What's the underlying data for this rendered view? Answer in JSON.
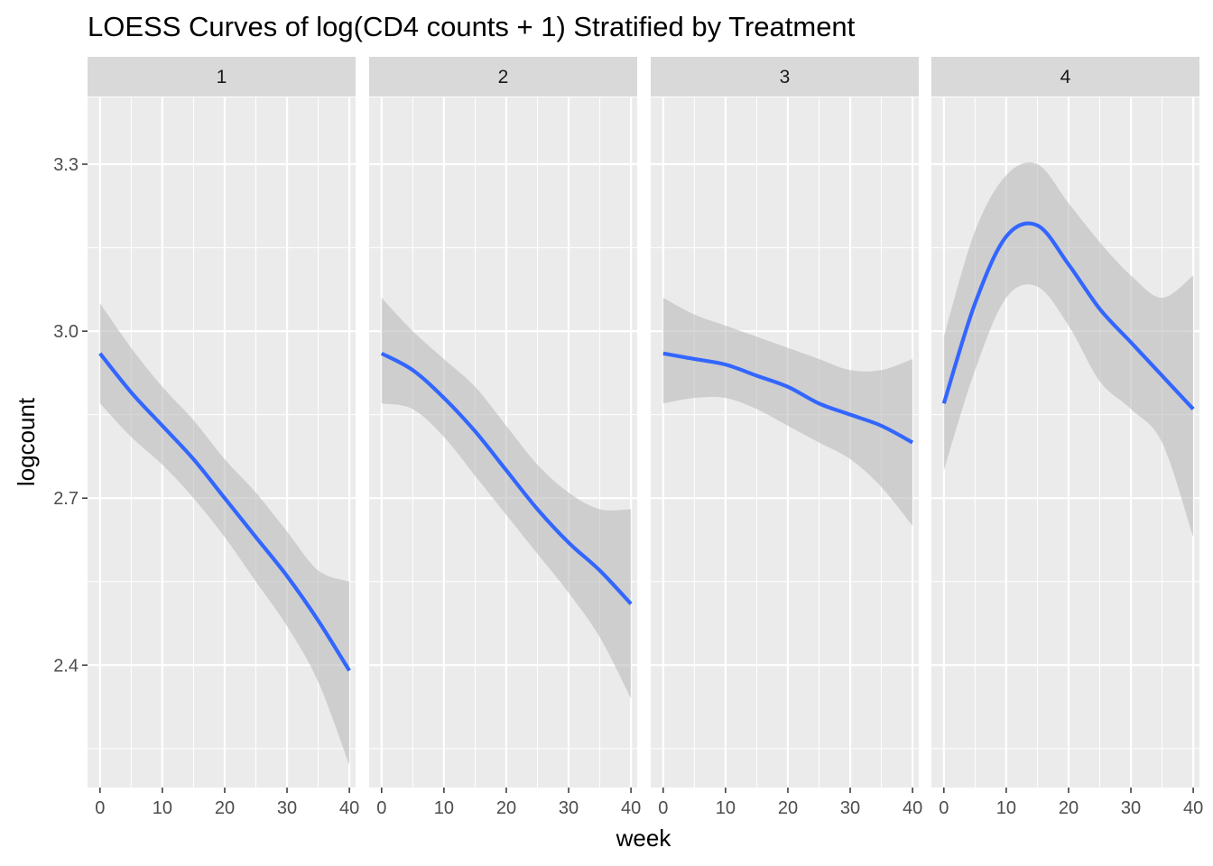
{
  "chart_data": {
    "type": "line",
    "title": "LOESS Curves of log(CD4 counts + 1) Stratified by Treatment",
    "xlabel": "week",
    "ylabel": "logcount",
    "xlim": [
      -2,
      41
    ],
    "ylim": [
      2.18,
      3.42
    ],
    "x_ticks": [
      0,
      10,
      20,
      30,
      40
    ],
    "x_tick_labels": [
      "0",
      "10",
      "20",
      "30",
      "40"
    ],
    "y_ticks": [
      2.4,
      2.7,
      3.0,
      3.3
    ],
    "y_tick_labels": [
      "2.4",
      "2.7",
      "3.0",
      "3.3"
    ],
    "grid": true,
    "legend": "none",
    "colors": {
      "line": "#3366ff",
      "ribbon": "#bdbdbd",
      "panel_background": "#ebebeb",
      "strip_background": "#d9d9d9",
      "grid": "#ffffff"
    },
    "panels": [
      {
        "strip": "1",
        "x": [
          0,
          5,
          10,
          15,
          20,
          25,
          30,
          35,
          40
        ],
        "fit": [
          2.96,
          2.89,
          2.83,
          2.77,
          2.7,
          2.63,
          2.56,
          2.48,
          2.39
        ],
        "lower": [
          2.87,
          2.81,
          2.76,
          2.7,
          2.63,
          2.55,
          2.47,
          2.37,
          2.22
        ],
        "upper": [
          3.05,
          2.97,
          2.9,
          2.84,
          2.77,
          2.71,
          2.64,
          2.57,
          2.55
        ]
      },
      {
        "strip": "2",
        "x": [
          0,
          5,
          10,
          15,
          20,
          25,
          30,
          35,
          40
        ],
        "fit": [
          2.96,
          2.93,
          2.88,
          2.82,
          2.75,
          2.68,
          2.62,
          2.57,
          2.51
        ],
        "lower": [
          2.87,
          2.86,
          2.81,
          2.74,
          2.67,
          2.6,
          2.53,
          2.45,
          2.34
        ],
        "upper": [
          3.06,
          3.0,
          2.95,
          2.9,
          2.83,
          2.76,
          2.71,
          2.68,
          2.68
        ]
      },
      {
        "strip": "3",
        "x": [
          0,
          5,
          10,
          15,
          20,
          25,
          30,
          35,
          40
        ],
        "fit": [
          2.96,
          2.95,
          2.94,
          2.92,
          2.9,
          2.87,
          2.85,
          2.83,
          2.8
        ],
        "lower": [
          2.87,
          2.88,
          2.88,
          2.86,
          2.83,
          2.8,
          2.77,
          2.72,
          2.65
        ],
        "upper": [
          3.06,
          3.03,
          3.01,
          2.99,
          2.97,
          2.95,
          2.93,
          2.93,
          2.95
        ]
      },
      {
        "strip": "4",
        "x": [
          0,
          5,
          10,
          15,
          20,
          25,
          30,
          35,
          40
        ],
        "fit": [
          2.87,
          3.05,
          3.17,
          3.19,
          3.12,
          3.04,
          2.98,
          2.92,
          2.86
        ],
        "lower": [
          2.75,
          2.93,
          3.06,
          3.08,
          3.01,
          2.91,
          2.86,
          2.8,
          2.63
        ],
        "upper": [
          2.99,
          3.18,
          3.28,
          3.3,
          3.23,
          3.16,
          3.1,
          3.06,
          3.1
        ]
      }
    ]
  }
}
